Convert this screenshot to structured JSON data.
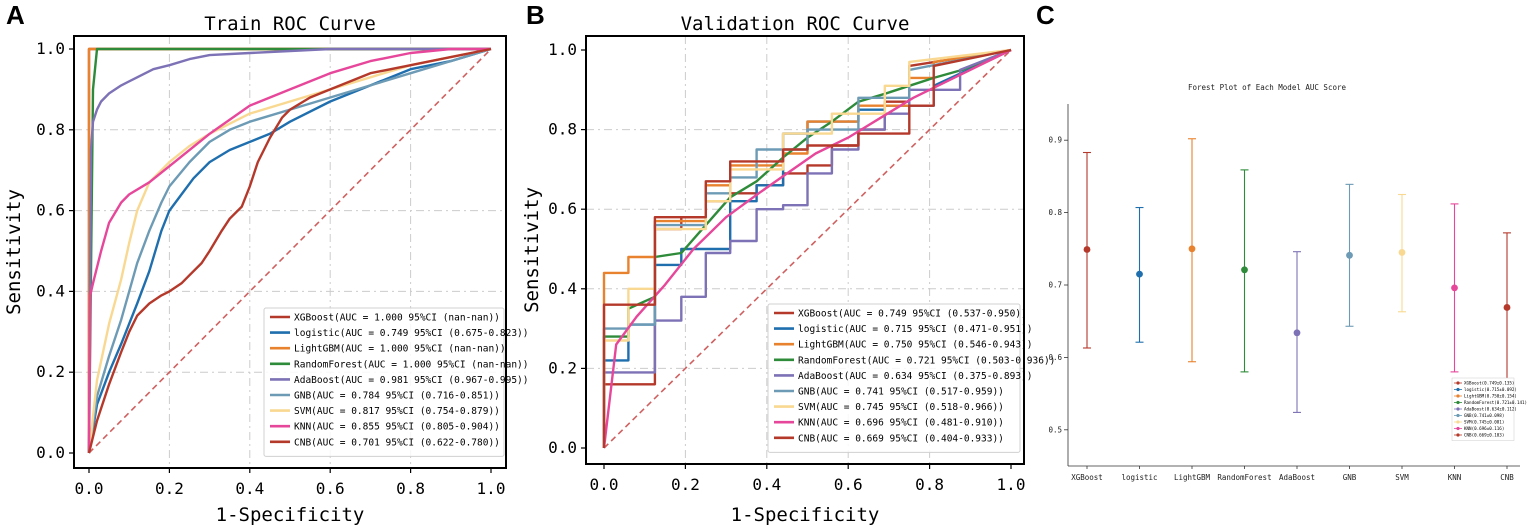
{
  "panels": {
    "A": {
      "letter": "A",
      "title": "Train ROC Curve",
      "xlabel": "1-Specificity",
      "ylabel": "Sensitivity",
      "xticks": [
        "0.0",
        "0.2",
        "0.4",
        "0.6",
        "0.8",
        "1.0"
      ],
      "yticks": [
        "0.0",
        "0.2",
        "0.4",
        "0.6",
        "0.8",
        "1.0"
      ]
    },
    "B": {
      "letter": "B",
      "title": "Validation ROC Curve",
      "xlabel": "1-Specificity",
      "ylabel": "Sensitivity",
      "xticks": [
        "0.0",
        "0.2",
        "0.4",
        "0.6",
        "0.8",
        "1.0"
      ],
      "yticks": [
        "0.0",
        "0.2",
        "0.4",
        "0.6",
        "0.8",
        "1.0"
      ]
    },
    "C": {
      "letter": "C",
      "title": "Forest Plot of Each Model AUC Score",
      "yticks": [
        "0.5",
        "0.6",
        "0.7",
        "0.8",
        "0.9"
      ]
    }
  },
  "chart_data": [
    {
      "type": "line",
      "panel": "A",
      "title": "Train ROC Curve",
      "xlabel": "1-Specificity",
      "ylabel": "Sensitivity",
      "xlim": [
        0,
        1
      ],
      "ylim": [
        0,
        1
      ],
      "series": [
        {
          "name": "XGBoost",
          "color": "#b5392b",
          "legend": "XGBoost(AUC = 1.000 95%CI (nan-nan))",
          "x": [
            0,
            0,
            1
          ],
          "y": [
            0,
            1,
            1
          ]
        },
        {
          "name": "logistic",
          "color": "#1f6fae",
          "legend": "logistic(AUC = 0.749 95%CI (0.675-0.823))",
          "x": [
            0,
            0.02,
            0.05,
            0.08,
            0.1,
            0.12,
            0.15,
            0.18,
            0.2,
            0.23,
            0.26,
            0.3,
            0.35,
            0.4,
            0.45,
            0.5,
            0.6,
            0.7,
            0.8,
            0.9,
            1.0
          ],
          "y": [
            0,
            0.12,
            0.2,
            0.27,
            0.32,
            0.37,
            0.45,
            0.55,
            0.6,
            0.64,
            0.68,
            0.72,
            0.75,
            0.77,
            0.79,
            0.82,
            0.87,
            0.91,
            0.95,
            0.97,
            1.0
          ]
        },
        {
          "name": "LightGBM",
          "color": "#e9822e",
          "legend": "LightGBM(AUC = 1.000 95%CI (nan-nan))",
          "x": [
            0,
            0,
            1
          ],
          "y": [
            0,
            1,
            1
          ]
        },
        {
          "name": "RandomForest",
          "color": "#2e8b3a",
          "legend": "RandomForest(AUC = 1.000 95%CI (nan-nan))",
          "x": [
            0,
            0.01,
            0.02,
            1
          ],
          "y": [
            0,
            0.9,
            1.0,
            1.0
          ]
        },
        {
          "name": "AdaBoost",
          "color": "#7d72b5",
          "legend": "AdaBoost(AUC = 0.981 95%CI (0.967-0.995))",
          "x": [
            0,
            0.005,
            0.01,
            0.02,
            0.03,
            0.05,
            0.08,
            0.12,
            0.16,
            0.2,
            0.25,
            0.3,
            0.4,
            0.5,
            0.6,
            0.8,
            1.0
          ],
          "y": [
            0,
            0.75,
            0.82,
            0.85,
            0.87,
            0.89,
            0.91,
            0.93,
            0.95,
            0.96,
            0.975,
            0.985,
            0.99,
            0.995,
            1.0,
            1.0,
            1.0
          ]
        },
        {
          "name": "GNB",
          "color": "#6d9bb5",
          "legend": "GNB(AUC = 0.784 95%CI (0.716-0.851))",
          "x": [
            0,
            0.02,
            0.05,
            0.08,
            0.1,
            0.12,
            0.15,
            0.18,
            0.2,
            0.25,
            0.3,
            0.35,
            0.4,
            0.5,
            0.6,
            0.7,
            0.8,
            0.9,
            1.0
          ],
          "y": [
            0,
            0.14,
            0.24,
            0.33,
            0.4,
            0.47,
            0.55,
            0.62,
            0.66,
            0.72,
            0.77,
            0.8,
            0.82,
            0.85,
            0.88,
            0.91,
            0.94,
            0.97,
            1.0
          ]
        },
        {
          "name": "SVM",
          "color": "#f9d891",
          "legend": "SVM(AUC = 0.817 95%CI (0.754-0.879))",
          "x": [
            0,
            0.02,
            0.05,
            0.08,
            0.1,
            0.12,
            0.15,
            0.18,
            0.2,
            0.25,
            0.3,
            0.4,
            0.5,
            0.6,
            0.7,
            0.8,
            0.9,
            1.0
          ],
          "y": [
            0,
            0.18,
            0.32,
            0.43,
            0.52,
            0.6,
            0.67,
            0.7,
            0.72,
            0.76,
            0.79,
            0.84,
            0.87,
            0.9,
            0.93,
            0.96,
            0.98,
            1.0
          ]
        },
        {
          "name": "KNN",
          "color": "#e7479a",
          "legend": "KNN(AUC = 0.855 95%CI (0.805-0.904))",
          "x": [
            0,
            0.003,
            0.01,
            0.03,
            0.05,
            0.08,
            0.1,
            0.15,
            0.2,
            0.3,
            0.4,
            0.5,
            0.6,
            0.7,
            0.8,
            0.9,
            1.0
          ],
          "y": [
            0,
            0.39,
            0.42,
            0.5,
            0.57,
            0.62,
            0.64,
            0.67,
            0.71,
            0.79,
            0.86,
            0.9,
            0.94,
            0.97,
            0.99,
            1.0,
            1.0
          ]
        },
        {
          "name": "CNB",
          "color": "#b5392b",
          "legend": "CNB(AUC = 0.701 95%CI (0.622-0.780))",
          "x": [
            0,
            0.02,
            0.05,
            0.08,
            0.1,
            0.12,
            0.15,
            0.18,
            0.2,
            0.23,
            0.25,
            0.28,
            0.3,
            0.33,
            0.35,
            0.38,
            0.4,
            0.42,
            0.45,
            0.48,
            0.5,
            0.55,
            0.6,
            0.7,
            0.8,
            0.9,
            1.0
          ],
          "y": [
            0,
            0.08,
            0.17,
            0.25,
            0.3,
            0.34,
            0.37,
            0.39,
            0.4,
            0.42,
            0.44,
            0.47,
            0.5,
            0.55,
            0.58,
            0.61,
            0.66,
            0.72,
            0.78,
            0.83,
            0.85,
            0.88,
            0.9,
            0.94,
            0.96,
            0.98,
            1.0
          ]
        }
      ]
    },
    {
      "type": "line",
      "panel": "B",
      "title": "Validation ROC Curve",
      "xlabel": "1-Specificity",
      "ylabel": "Sensitivity",
      "xlim": [
        0,
        1
      ],
      "ylim": [
        0,
        1
      ],
      "series": [
        {
          "name": "XGBoost",
          "color": "#b5392b",
          "legend": "XGBoost(AUC = 0.749 95%CI (0.537-0.950))",
          "x": [
            0,
            0,
            0.125,
            0.125,
            0.19,
            0.19,
            0.25,
            0.25,
            0.31,
            0.31,
            0.375,
            0.375,
            0.44,
            0.44,
            0.5,
            0.5,
            0.56,
            0.56,
            0.625,
            0.625,
            0.69,
            0.69,
            0.75,
            0.75,
            1
          ],
          "y": [
            0,
            0.16,
            0.16,
            0.55,
            0.55,
            0.58,
            0.58,
            0.62,
            0.62,
            0.64,
            0.64,
            0.66,
            0.66,
            0.69,
            0.69,
            0.71,
            0.71,
            0.76,
            0.76,
            0.8,
            0.8,
            0.87,
            0.87,
            0.96,
            1
          ]
        },
        {
          "name": "logistic",
          "color": "#1f6fae",
          "legend": "logistic(AUC = 0.715 95%CI (0.471-0.951))",
          "x": [
            0,
            0,
            0.06,
            0.06,
            0.125,
            0.125,
            0.19,
            0.19,
            0.31,
            0.31,
            0.375,
            0.375,
            0.44,
            0.44,
            0.5,
            0.5,
            0.625,
            0.625,
            0.69,
            0.69,
            0.81,
            0.81,
            1
          ],
          "y": [
            0,
            0.22,
            0.22,
            0.31,
            0.31,
            0.46,
            0.46,
            0.5,
            0.5,
            0.62,
            0.62,
            0.66,
            0.66,
            0.79,
            0.79,
            0.82,
            0.82,
            0.85,
            0.85,
            0.86,
            0.86,
            0.91,
            1
          ]
        },
        {
          "name": "LightGBM",
          "color": "#e9822e",
          "legend": "LightGBM(AUC = 0.750 95%CI (0.546-0.943))",
          "x": [
            0,
            0,
            0.06,
            0.06,
            0.125,
            0.125,
            0.25,
            0.25,
            0.31,
            0.31,
            0.44,
            0.44,
            0.5,
            0.5,
            0.625,
            0.625,
            0.75,
            0.75,
            0.81,
            0.81,
            1
          ],
          "y": [
            0,
            0.44,
            0.44,
            0.48,
            0.48,
            0.57,
            0.57,
            0.66,
            0.66,
            0.71,
            0.71,
            0.74,
            0.74,
            0.82,
            0.82,
            0.86,
            0.86,
            0.93,
            0.93,
            0.97,
            1
          ]
        },
        {
          "name": "RandomForest",
          "color": "#2e8b3a",
          "legend": "RandomForest(AUC = 0.721 95%CI (0.503-0.936))",
          "x": [
            0,
            0,
            0.06,
            0.06,
            0.125,
            0.125,
            0.19,
            0.25,
            0.31,
            0.375,
            0.44,
            0.5,
            0.56,
            0.625,
            0.69,
            0.75,
            0.81,
            0.88,
            1
          ],
          "y": [
            0,
            0.28,
            0.28,
            0.35,
            0.38,
            0.48,
            0.49,
            0.56,
            0.63,
            0.67,
            0.73,
            0.78,
            0.82,
            0.87,
            0.89,
            0.91,
            0.93,
            0.95,
            1
          ]
        },
        {
          "name": "AdaBoost",
          "color": "#7d72b5",
          "legend": "AdaBoost(AUC = 0.634 95%CI (0.375-0.893))",
          "x": [
            0,
            0,
            0.125,
            0.125,
            0.19,
            0.19,
            0.25,
            0.25,
            0.31,
            0.31,
            0.375,
            0.375,
            0.44,
            0.44,
            0.5,
            0.5,
            0.56,
            0.56,
            0.625,
            0.625,
            0.69,
            0.69,
            0.75,
            0.75,
            0.875,
            0.875,
            1
          ],
          "y": [
            0,
            0.19,
            0.19,
            0.32,
            0.32,
            0.38,
            0.38,
            0.49,
            0.49,
            0.52,
            0.52,
            0.6,
            0.6,
            0.61,
            0.61,
            0.69,
            0.69,
            0.75,
            0.75,
            0.8,
            0.8,
            0.84,
            0.84,
            0.9,
            0.9,
            0.95,
            1
          ]
        },
        {
          "name": "GNB",
          "color": "#6d9bb5",
          "legend": "GNB(AUC = 0.741 95%CI (0.517-0.959))",
          "x": [
            0,
            0,
            0.06,
            0.06,
            0.125,
            0.125,
            0.25,
            0.25,
            0.31,
            0.31,
            0.375,
            0.375,
            0.5,
            0.5,
            0.625,
            0.625,
            0.75,
            0.75,
            1
          ],
          "y": [
            0,
            0.3,
            0.3,
            0.31,
            0.31,
            0.56,
            0.56,
            0.64,
            0.64,
            0.68,
            0.68,
            0.75,
            0.75,
            0.8,
            0.8,
            0.88,
            0.88,
            0.95,
            1
          ]
        },
        {
          "name": "SVM",
          "color": "#f9d891",
          "legend": "SVM(AUC = 0.745 95%CI (0.518-0.966))",
          "x": [
            0,
            0,
            0.06,
            0.06,
            0.125,
            0.125,
            0.25,
            0.25,
            0.31,
            0.31,
            0.44,
            0.44,
            0.56,
            0.56,
            0.69,
            0.69,
            0.75,
            0.75,
            1
          ],
          "y": [
            0,
            0.27,
            0.27,
            0.4,
            0.4,
            0.55,
            0.55,
            0.62,
            0.62,
            0.7,
            0.7,
            0.79,
            0.79,
            0.84,
            0.84,
            0.91,
            0.91,
            0.97,
            1
          ]
        },
        {
          "name": "KNN",
          "color": "#e7479a",
          "legend": "KNN(AUC = 0.696 95%CI (0.481-0.910))",
          "x": [
            0,
            0.03,
            0.08,
            0.15,
            0.22,
            0.3,
            0.38,
            0.45,
            0.52,
            0.6,
            0.68,
            0.76,
            0.84,
            0.92,
            1.0
          ],
          "y": [
            0,
            0.26,
            0.33,
            0.41,
            0.5,
            0.58,
            0.64,
            0.69,
            0.74,
            0.78,
            0.83,
            0.88,
            0.92,
            0.96,
            1.0
          ]
        },
        {
          "name": "CNB",
          "color": "#b5392b",
          "legend": "CNB(AUC = 0.669 95%CI (0.404-0.933))",
          "x": [
            0,
            0,
            0.06,
            0.06,
            0.125,
            0.125,
            0.25,
            0.25,
            0.31,
            0.31,
            0.44,
            0.44,
            0.5,
            0.5,
            0.625,
            0.625,
            0.75,
            0.75,
            0.81,
            0.81,
            1
          ],
          "y": [
            0,
            0.36,
            0.36,
            0.36,
            0.36,
            0.58,
            0.58,
            0.67,
            0.67,
            0.72,
            0.72,
            0.75,
            0.75,
            0.76,
            0.76,
            0.79,
            0.79,
            0.86,
            0.86,
            0.96,
            1
          ]
        }
      ]
    },
    {
      "type": "errorbar",
      "panel": "C",
      "title": "Forest Plot of Each Model AUC Score",
      "ylim": [
        0.45,
        0.95
      ],
      "categories": [
        "XGBoost",
        "logistic",
        "LightGBM",
        "RandomForest",
        "AdaBoost",
        "GNB",
        "SVM",
        "KNN",
        "CNB"
      ],
      "values": [
        0.749,
        0.715,
        0.75,
        0.721,
        0.634,
        0.741,
        0.745,
        0.696,
        0.669
      ],
      "lower": [
        0.613,
        0.621,
        0.594,
        0.58,
        0.524,
        0.643,
        0.663,
        0.58,
        0.565
      ],
      "upper": [
        0.883,
        0.807,
        0.902,
        0.859,
        0.746,
        0.839,
        0.825,
        0.812,
        0.772
      ],
      "colors": [
        "#b5392b",
        "#1f6fae",
        "#e9822e",
        "#2e8b3a",
        "#7d72b5",
        "#6d9bb5",
        "#f9d891",
        "#e7479a",
        "#b5392b"
      ],
      "legend": [
        "XGBoost(0.749±0.135)",
        "logistic(0.715±0.092)",
        "LightGBM(0.750±0.154)",
        "RandomForest(0.721±0.141)",
        "AdaBoost(0.634±0.112)",
        "GNB(0.741±0.098)",
        "SVM(0.745±0.081)",
        "KNN(0.696±0.116)",
        "CNB(0.669±0.103)"
      ]
    }
  ]
}
